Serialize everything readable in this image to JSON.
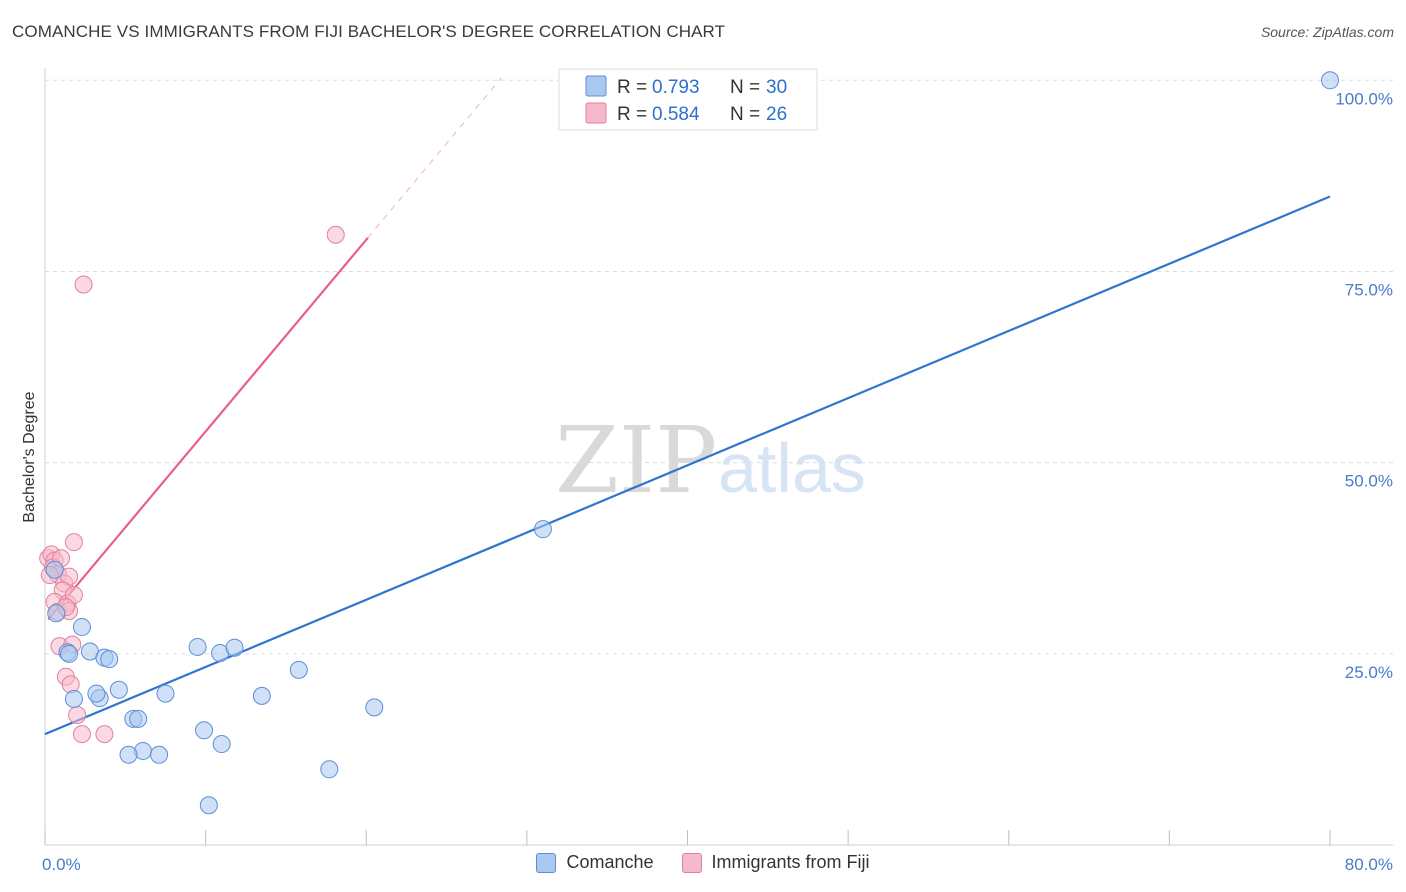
{
  "header": {
    "title": "COMANCHE VS IMMIGRANTS FROM FIJI BACHELOR'S DEGREE CORRELATION CHART",
    "source": "Source: ZipAtlas.com"
  },
  "watermark": {
    "zip": "ZIP",
    "atlas": "atlas"
  },
  "colors": {
    "blue_fill": "#a9c8f0",
    "blue_stroke": "#5b8fd6",
    "blue_line": "#2f75d0",
    "pink_fill": "#f6b9cb",
    "pink_stroke": "#e37f9f",
    "pink_line": "#e8608a",
    "tick_text": "#4a7cc7"
  },
  "legend": {
    "rows": [
      {
        "r_label": "R =",
        "r_value": "0.793",
        "n_label": "N =",
        "n_value": "30"
      },
      {
        "r_label": "R =",
        "r_value": "0.584",
        "n_label": "N =",
        "n_value": "26"
      }
    ]
  },
  "bottom_legend": {
    "series1": "Comanche",
    "series2": "Immigrants from Fiji"
  },
  "chart_data": {
    "type": "scatter",
    "title": "COMANCHE VS IMMIGRANTS FROM FIJI BACHELOR'S DEGREE CORRELATION CHART",
    "xlabel": "",
    "ylabel": "Bachelor's Degree",
    "xlim": [
      0,
      80
    ],
    "ylim": [
      0,
      102
    ],
    "x_tick_labels": [
      "0.0%",
      "80.0%"
    ],
    "y_tick_values": [
      25,
      50,
      75,
      100
    ],
    "y_tick_labels": [
      "25.0%",
      "50.0%",
      "75.0%",
      "100.0%"
    ],
    "series": [
      {
        "name": "Comanche",
        "color": "#a9c8f0",
        "points": [
          [
            0.7,
            30.3
          ],
          [
            1.4,
            25.2
          ],
          [
            2.3,
            28.5
          ],
          [
            2.8,
            25.3
          ],
          [
            3.7,
            24.5
          ],
          [
            4.0,
            24.3
          ],
          [
            1.5,
            25.0
          ],
          [
            3.4,
            19.2
          ],
          [
            3.2,
            19.8
          ],
          [
            4.6,
            20.3
          ],
          [
            1.8,
            19.1
          ],
          [
            5.5,
            16.5
          ],
          [
            5.8,
            16.5
          ],
          [
            6.1,
            12.3
          ],
          [
            5.2,
            11.8
          ],
          [
            7.1,
            11.8
          ],
          [
            7.5,
            19.8
          ],
          [
            9.5,
            25.9
          ],
          [
            10.9,
            25.1
          ],
          [
            11.8,
            25.8
          ],
          [
            9.9,
            15.0
          ],
          [
            11.0,
            13.2
          ],
          [
            13.5,
            19.5
          ],
          [
            15.8,
            22.9
          ],
          [
            17.7,
            9.9
          ],
          [
            20.5,
            18.0
          ],
          [
            10.2,
            5.2
          ],
          [
            31.0,
            41.3
          ],
          [
            80.0,
            100.0
          ],
          [
            0.6,
            36.0
          ]
        ],
        "trend": {
          "x": [
            0,
            80
          ],
          "y": [
            14.5,
            84.8
          ]
        }
      },
      {
        "name": "Immigrants from Fiji",
        "color": "#f6b9cb",
        "points": [
          [
            0.2,
            37.5
          ],
          [
            0.4,
            38.0
          ],
          [
            0.6,
            37.2
          ],
          [
            0.5,
            36.3
          ],
          [
            0.8,
            35.4
          ],
          [
            0.3,
            35.3
          ],
          [
            1.0,
            37.5
          ],
          [
            1.2,
            34.2
          ],
          [
            1.5,
            35.1
          ],
          [
            1.8,
            39.6
          ],
          [
            1.1,
            33.3
          ],
          [
            0.6,
            31.8
          ],
          [
            1.4,
            31.6
          ],
          [
            1.8,
            32.7
          ],
          [
            0.8,
            30.5
          ],
          [
            1.5,
            30.6
          ],
          [
            1.3,
            31.1
          ],
          [
            0.9,
            26.0
          ],
          [
            1.7,
            26.2
          ],
          [
            1.3,
            22.0
          ],
          [
            1.6,
            21.0
          ],
          [
            2.0,
            17.0
          ],
          [
            2.3,
            14.5
          ],
          [
            3.7,
            14.5
          ],
          [
            2.4,
            73.3
          ],
          [
            18.1,
            79.8
          ]
        ],
        "trend": {
          "x": [
            0.2,
            20.1
          ],
          "y": [
            29.5,
            79.4
          ]
        },
        "trend_extension": {
          "x": [
            20.1,
            28.4
          ],
          "y": [
            79.4,
            100.3
          ]
        }
      }
    ]
  }
}
